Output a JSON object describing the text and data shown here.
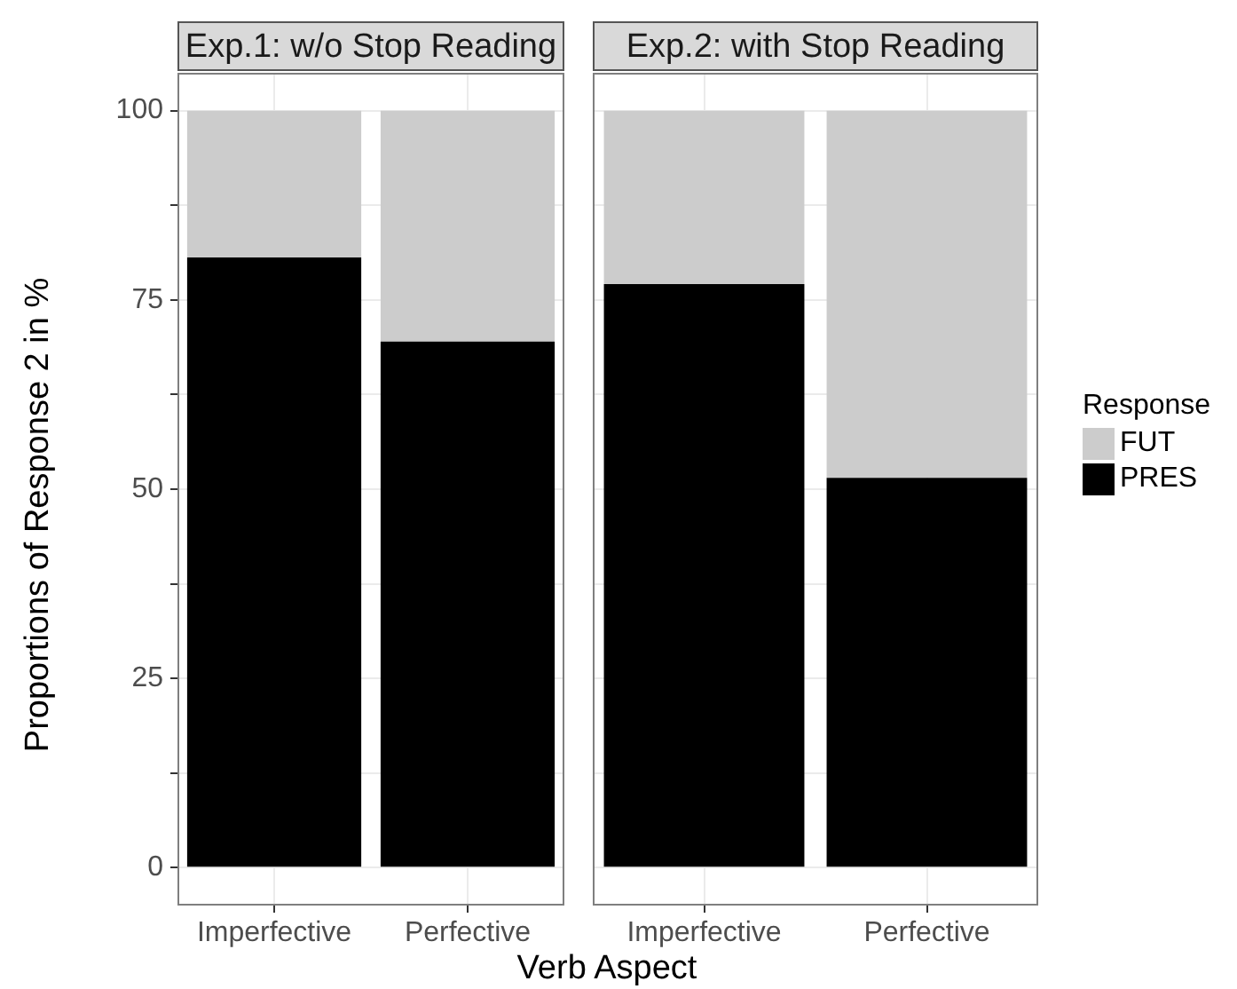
{
  "chart_data": [
    {
      "type": "bar",
      "title": "Exp.1: w/o Stop Reading",
      "xlabel": "Verb Aspect",
      "ylabel": "Proportions of Response 2 in %",
      "categories": [
        "Imperfective",
        "Perfective"
      ],
      "stacked": true,
      "series": [
        {
          "color": "#000000",
          "values": [
            80.6,
            69.5
          ]
        },
        {
          "color": "#cccccc",
          "values": [
            19.4,
            30.5
          ]
        }
      ],
      "ylim": [
        -5,
        105
      ],
      "yticks": [
        0,
        {
          "value": 12.5,
          "label": null
        },
        25,
        {
          "value": 37.5,
          "label": null
        },
        50,
        {
          "value": 62.5,
          "label": null
        },
        75,
        {
          "value": 87.5,
          "label": null
        },
        100
      ],
      "grid": true,
      "legend": false
    },
    {
      "type": "bar",
      "title": "Exp.2: with Stop Reading",
      "legend_title": "Response",
      "categories": [
        "Imperfective",
        "Perfective"
      ],
      "stacked": true,
      "series": [
        {
          "name": "PRES",
          "color": "#000000",
          "values": [
            77.1,
            51.5
          ]
        },
        {
          "name": "FUT",
          "color": "#cccccc",
          "values": [
            22.9,
            48.5
          ]
        }
      ],
      "ylim": [
        -5,
        105
      ],
      "yticks": [
        0,
        {
          "value": 12.5,
          "label": null
        },
        25,
        {
          "value": 37.5,
          "label": null
        },
        50,
        {
          "value": 62.5,
          "label": null
        },
        75,
        {
          "value": 87.5,
          "label": null
        },
        100
      ],
      "grid": true,
      "legend": "right",
      "tick_labels": "x"
    }
  ]
}
